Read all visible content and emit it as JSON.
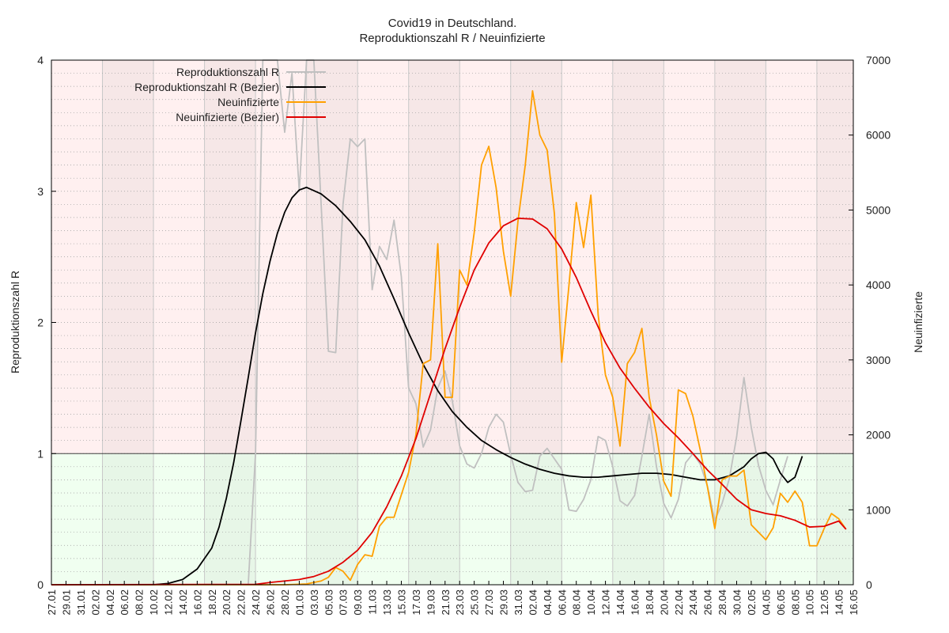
{
  "chart_data": {
    "type": "line",
    "title": "Covid19 in Deutschland.",
    "subtitle": "Reproduktionszahl R / Neuinfizierte",
    "ylabel": "Reproduktionszahl R",
    "y2label": "Neuinfizierte",
    "ylim": [
      0,
      4
    ],
    "y2lim": [
      0,
      7000
    ],
    "yticks": [
      "0",
      "1",
      "2",
      "3",
      "4"
    ],
    "y2ticks": [
      "0",
      "1000",
      "2000",
      "3000",
      "4000",
      "5000",
      "6000",
      "7000"
    ],
    "threshold": 1,
    "x_start": "2020-01-27",
    "x_end": "2020-05-16",
    "xticks": [
      "27.01",
      "29.01",
      "31.01",
      "02.02",
      "04.02",
      "06.02",
      "08.02",
      "10.02",
      "12.02",
      "14.02",
      "16.02",
      "18.02",
      "20.02",
      "22.02",
      "24.02",
      "26.02",
      "28.02",
      "01.03",
      "03.03",
      "05.03",
      "07.03",
      "09.03",
      "11.03",
      "13.03",
      "15.03",
      "17.03",
      "19.03",
      "21.03",
      "23.03",
      "25.03",
      "27.03",
      "29.03",
      "31.03",
      "02.04",
      "04.04",
      "06.04",
      "08.04",
      "10.04",
      "12.04",
      "14.04",
      "16.04",
      "18.04",
      "20.04",
      "22.04",
      "24.04",
      "26.04",
      "28.04",
      "30.04",
      "02.05",
      "04.05",
      "06.05",
      "08.05",
      "10.05",
      "12.05",
      "14.05",
      "16.05"
    ],
    "grid": true,
    "legend_position": "top-left",
    "colors": {
      "r_raw": "#c0c0c0",
      "r_bezier": "#000000",
      "new_raw": "#ffa000",
      "new_bezier": "#e00000",
      "band_above": "#fff0f0",
      "band_below": "#f0fff0"
    },
    "series": [
      {
        "name": "Reproduktionszahl R",
        "axis": "left",
        "points": [
          [
            "2020-02-23",
            0
          ],
          [
            "2020-02-24",
            1.0
          ],
          [
            "2020-02-25",
            4.0
          ],
          [
            "2020-02-26",
            4.0
          ],
          [
            "2020-02-27",
            4.0
          ],
          [
            "2020-02-28",
            3.45
          ],
          [
            "2020-02-29",
            3.9
          ],
          [
            "2020-03-01",
            3.0
          ],
          [
            "2020-03-02",
            4.0
          ],
          [
            "2020-03-03",
            4.0
          ],
          [
            "2020-03-04",
            2.9
          ],
          [
            "2020-03-05",
            1.78
          ],
          [
            "2020-03-06",
            1.77
          ],
          [
            "2020-03-07",
            2.9
          ],
          [
            "2020-03-08",
            3.4
          ],
          [
            "2020-03-09",
            3.34
          ],
          [
            "2020-03-10",
            3.4
          ],
          [
            "2020-03-11",
            2.25
          ],
          [
            "2020-03-12",
            2.58
          ],
          [
            "2020-03-13",
            2.48
          ],
          [
            "2020-03-14",
            2.78
          ],
          [
            "2020-03-15",
            2.35
          ],
          [
            "2020-03-16",
            1.5
          ],
          [
            "2020-03-17",
            1.38
          ],
          [
            "2020-03-18",
            1.05
          ],
          [
            "2020-03-19",
            1.18
          ],
          [
            "2020-03-20",
            1.5
          ],
          [
            "2020-03-21",
            1.63
          ],
          [
            "2020-03-22",
            1.4
          ],
          [
            "2020-03-23",
            1.06
          ],
          [
            "2020-03-24",
            0.92
          ],
          [
            "2020-03-25",
            0.89
          ],
          [
            "2020-03-26",
            1.0
          ],
          [
            "2020-03-27",
            1.2
          ],
          [
            "2020-03-28",
            1.3
          ],
          [
            "2020-03-29",
            1.24
          ],
          [
            "2020-03-30",
            0.99
          ],
          [
            "2020-03-31",
            0.78
          ],
          [
            "2020-04-01",
            0.71
          ],
          [
            "2020-04-02",
            0.72
          ],
          [
            "2020-04-03",
            0.98
          ],
          [
            "2020-04-04",
            1.04
          ],
          [
            "2020-04-05",
            0.96
          ],
          [
            "2020-04-06",
            0.88
          ],
          [
            "2020-04-07",
            0.57
          ],
          [
            "2020-04-08",
            0.56
          ],
          [
            "2020-04-09",
            0.65
          ],
          [
            "2020-04-10",
            0.8
          ],
          [
            "2020-04-11",
            1.13
          ],
          [
            "2020-04-12",
            1.1
          ],
          [
            "2020-04-13",
            0.9
          ],
          [
            "2020-04-14",
            0.64
          ],
          [
            "2020-04-15",
            0.6
          ],
          [
            "2020-04-16",
            0.68
          ],
          [
            "2020-04-17",
            0.98
          ],
          [
            "2020-04-18",
            1.3
          ],
          [
            "2020-04-19",
            0.9
          ],
          [
            "2020-04-20",
            0.62
          ],
          [
            "2020-04-21",
            0.51
          ],
          [
            "2020-04-22",
            0.65
          ],
          [
            "2020-04-23",
            0.93
          ],
          [
            "2020-04-24",
            1.0
          ],
          [
            "2020-04-25",
            0.92
          ],
          [
            "2020-04-26",
            0.75
          ],
          [
            "2020-04-27",
            0.49
          ],
          [
            "2020-04-28",
            0.62
          ],
          [
            "2020-04-29",
            0.81
          ],
          [
            "2020-04-30",
            1.13
          ],
          [
            "2020-05-01",
            1.58
          ],
          [
            "2020-05-02",
            1.2
          ],
          [
            "2020-05-03",
            0.91
          ],
          [
            "2020-05-04",
            0.72
          ],
          [
            "2020-05-05",
            0.61
          ],
          [
            "2020-05-06",
            0.8
          ],
          [
            "2020-05-07",
            0.98
          ]
        ]
      },
      {
        "name": "Reproduktionszahl R (Bezier)",
        "axis": "left",
        "points": [
          [
            "2020-01-27",
            0
          ],
          [
            "2020-02-10",
            0
          ],
          [
            "2020-02-12",
            0.01
          ],
          [
            "2020-02-14",
            0.04
          ],
          [
            "2020-02-16",
            0.12
          ],
          [
            "2020-02-18",
            0.28
          ],
          [
            "2020-02-19",
            0.44
          ],
          [
            "2020-02-20",
            0.66
          ],
          [
            "2020-02-21",
            0.93
          ],
          [
            "2020-02-22",
            1.25
          ],
          [
            "2020-02-23",
            1.58
          ],
          [
            "2020-02-24",
            1.92
          ],
          [
            "2020-02-25",
            2.22
          ],
          [
            "2020-02-26",
            2.47
          ],
          [
            "2020-02-27",
            2.68
          ],
          [
            "2020-02-28",
            2.84
          ],
          [
            "2020-02-29",
            2.95
          ],
          [
            "2020-03-01",
            3.01
          ],
          [
            "2020-03-02",
            3.03
          ],
          [
            "2020-03-04",
            2.98
          ],
          [
            "2020-03-06",
            2.89
          ],
          [
            "2020-03-08",
            2.77
          ],
          [
            "2020-03-10",
            2.63
          ],
          [
            "2020-03-12",
            2.43
          ],
          [
            "2020-03-14",
            2.18
          ],
          [
            "2020-03-16",
            1.92
          ],
          [
            "2020-03-18",
            1.68
          ],
          [
            "2020-03-20",
            1.48
          ],
          [
            "2020-03-22",
            1.32
          ],
          [
            "2020-03-24",
            1.2
          ],
          [
            "2020-03-26",
            1.1
          ],
          [
            "2020-03-28",
            1.03
          ],
          [
            "2020-03-30",
            0.97
          ],
          [
            "2020-04-01",
            0.92
          ],
          [
            "2020-04-03",
            0.88
          ],
          [
            "2020-04-05",
            0.85
          ],
          [
            "2020-04-07",
            0.83
          ],
          [
            "2020-04-09",
            0.82
          ],
          [
            "2020-04-11",
            0.82
          ],
          [
            "2020-04-13",
            0.83
          ],
          [
            "2020-04-15",
            0.84
          ],
          [
            "2020-04-17",
            0.85
          ],
          [
            "2020-04-19",
            0.85
          ],
          [
            "2020-04-21",
            0.84
          ],
          [
            "2020-04-23",
            0.82
          ],
          [
            "2020-04-25",
            0.8
          ],
          [
            "2020-04-27",
            0.8
          ],
          [
            "2020-04-29",
            0.83
          ],
          [
            "2020-05-01",
            0.9
          ],
          [
            "2020-05-02",
            0.96
          ],
          [
            "2020-05-03",
            1.0
          ],
          [
            "2020-05-04",
            1.01
          ],
          [
            "2020-05-05",
            0.96
          ],
          [
            "2020-05-06",
            0.85
          ],
          [
            "2020-05-07",
            0.78
          ],
          [
            "2020-05-08",
            0.82
          ],
          [
            "2020-05-09",
            0.98
          ]
        ]
      },
      {
        "name": "Neuinfizierte",
        "axis": "right",
        "points": [
          [
            "2020-01-27",
            0
          ],
          [
            "2020-02-28",
            0
          ],
          [
            "2020-03-02",
            10
          ],
          [
            "2020-03-03",
            30
          ],
          [
            "2020-03-04",
            50
          ],
          [
            "2020-03-05",
            100
          ],
          [
            "2020-03-06",
            230
          ],
          [
            "2020-03-07",
            180
          ],
          [
            "2020-03-08",
            60
          ],
          [
            "2020-03-09",
            270
          ],
          [
            "2020-03-10",
            400
          ],
          [
            "2020-03-11",
            380
          ],
          [
            "2020-03-12",
            780
          ],
          [
            "2020-03-13",
            900
          ],
          [
            "2020-03-14",
            900
          ],
          [
            "2020-03-15",
            1200
          ],
          [
            "2020-03-16",
            1500
          ],
          [
            "2020-03-17",
            2000
          ],
          [
            "2020-03-18",
            2950
          ],
          [
            "2020-03-19",
            3000
          ],
          [
            "2020-03-20",
            4550
          ],
          [
            "2020-03-21",
            2500
          ],
          [
            "2020-03-22",
            2500
          ],
          [
            "2020-03-23",
            4200
          ],
          [
            "2020-03-24",
            4000
          ],
          [
            "2020-03-25",
            4700
          ],
          [
            "2020-03-26",
            5600
          ],
          [
            "2020-03-27",
            5850
          ],
          [
            "2020-03-28",
            5300
          ],
          [
            "2020-03-29",
            4450
          ],
          [
            "2020-03-30",
            3850
          ],
          [
            "2020-03-31",
            4850
          ],
          [
            "2020-04-01",
            5600
          ],
          [
            "2020-04-02",
            6590
          ],
          [
            "2020-04-03",
            6000
          ],
          [
            "2020-04-04",
            5800
          ],
          [
            "2020-04-05",
            4950
          ],
          [
            "2020-04-06",
            2970
          ],
          [
            "2020-04-07",
            4000
          ],
          [
            "2020-04-08",
            5100
          ],
          [
            "2020-04-09",
            4500
          ],
          [
            "2020-04-10",
            5200
          ],
          [
            "2020-04-11",
            3600
          ],
          [
            "2020-04-12",
            2800
          ],
          [
            "2020-04-13",
            2500
          ],
          [
            "2020-04-14",
            1850
          ],
          [
            "2020-04-15",
            2950
          ],
          [
            "2020-04-16",
            3100
          ],
          [
            "2020-04-17",
            3420
          ],
          [
            "2020-04-18",
            2500
          ],
          [
            "2020-04-19",
            2000
          ],
          [
            "2020-04-20",
            1380
          ],
          [
            "2020-04-21",
            1180
          ],
          [
            "2020-04-22",
            2600
          ],
          [
            "2020-04-23",
            2550
          ],
          [
            "2020-04-24",
            2250
          ],
          [
            "2020-04-25",
            1800
          ],
          [
            "2020-04-26",
            1300
          ],
          [
            "2020-04-27",
            750
          ],
          [
            "2020-04-28",
            1400
          ],
          [
            "2020-04-29",
            1450
          ],
          [
            "2020-04-30",
            1450
          ],
          [
            "2020-05-01",
            1530
          ],
          [
            "2020-05-02",
            800
          ],
          [
            "2020-05-03",
            700
          ],
          [
            "2020-05-04",
            600
          ],
          [
            "2020-05-05",
            760
          ],
          [
            "2020-05-06",
            1220
          ],
          [
            "2020-05-07",
            1100
          ],
          [
            "2020-05-08",
            1250
          ],
          [
            "2020-05-09",
            1100
          ],
          [
            "2020-05-10",
            520
          ],
          [
            "2020-05-11",
            520
          ],
          [
            "2020-05-12",
            750
          ],
          [
            "2020-05-13",
            950
          ],
          [
            "2020-05-14",
            880
          ],
          [
            "2020-05-15",
            740
          ]
        ]
      },
      {
        "name": "Neuinfizierte (Bezier)",
        "axis": "right",
        "points": [
          [
            "2020-01-27",
            0
          ],
          [
            "2020-02-24",
            5
          ],
          [
            "2020-02-26",
            30
          ],
          [
            "2020-02-28",
            50
          ],
          [
            "2020-03-01",
            70
          ],
          [
            "2020-03-03",
            110
          ],
          [
            "2020-03-05",
            180
          ],
          [
            "2020-03-07",
            300
          ],
          [
            "2020-03-09",
            460
          ],
          [
            "2020-03-11",
            700
          ],
          [
            "2020-03-13",
            1040
          ],
          [
            "2020-03-15",
            1450
          ],
          [
            "2020-03-17",
            1950
          ],
          [
            "2020-03-19",
            2550
          ],
          [
            "2020-03-21",
            3150
          ],
          [
            "2020-03-23",
            3700
          ],
          [
            "2020-03-25",
            4200
          ],
          [
            "2020-03-27",
            4560
          ],
          [
            "2020-03-29",
            4790
          ],
          [
            "2020-03-31",
            4890
          ],
          [
            "2020-04-02",
            4880
          ],
          [
            "2020-04-04",
            4750
          ],
          [
            "2020-04-06",
            4480
          ],
          [
            "2020-04-08",
            4100
          ],
          [
            "2020-04-10",
            3650
          ],
          [
            "2020-04-12",
            3230
          ],
          [
            "2020-04-14",
            2890
          ],
          [
            "2020-04-16",
            2620
          ],
          [
            "2020-04-18",
            2370
          ],
          [
            "2020-04-20",
            2150
          ],
          [
            "2020-04-22",
            1960
          ],
          [
            "2020-04-24",
            1750
          ],
          [
            "2020-04-26",
            1530
          ],
          [
            "2020-04-28",
            1340
          ],
          [
            "2020-04-30",
            1140
          ],
          [
            "2020-05-02",
            1000
          ],
          [
            "2020-05-04",
            950
          ],
          [
            "2020-05-06",
            920
          ],
          [
            "2020-05-08",
            860
          ],
          [
            "2020-05-10",
            770
          ],
          [
            "2020-05-12",
            780
          ],
          [
            "2020-05-14",
            850
          ],
          [
            "2020-05-15",
            740
          ]
        ]
      }
    ]
  }
}
